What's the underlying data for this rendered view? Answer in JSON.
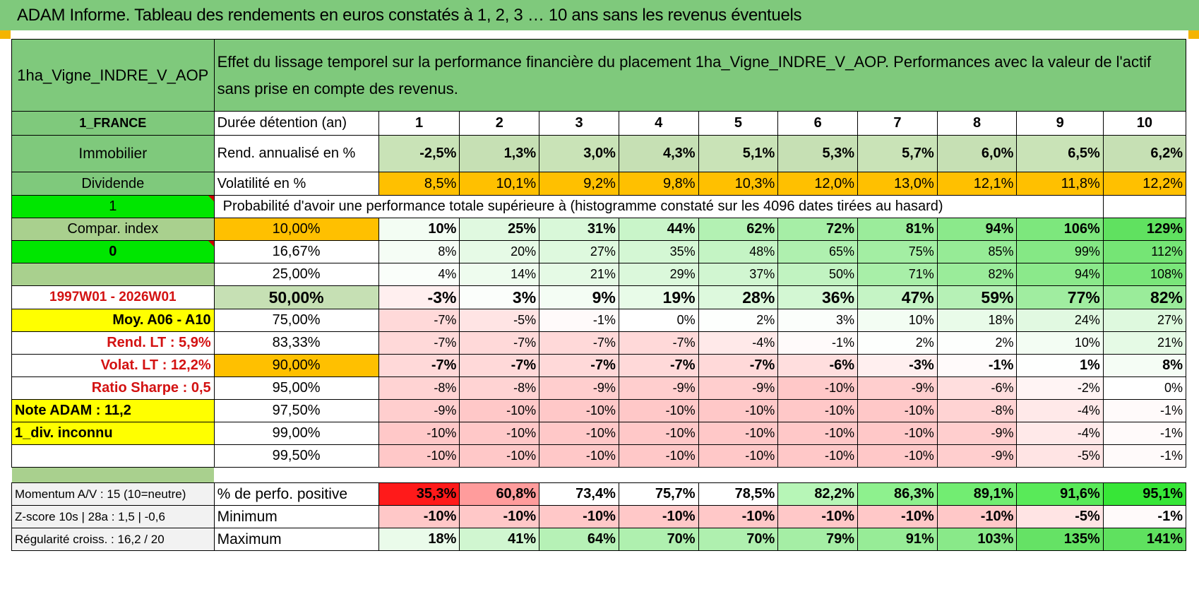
{
  "header": {
    "title": "ADAM Informe. Tableau des rendements en euros constatés à 1, 2, 3 … 10 ans sans les revenus éventuels"
  },
  "asset": {
    "name": "1ha_Vigne_INDRE_V_AOP",
    "description": "Effet du lissage temporel sur la performance financière du placement 1ha_Vigne_INDRE_V_AOP. Performances avec la valeur de l'actif sans prise en compte des revenus."
  },
  "info": {
    "country": "1_FRANCE",
    "category": "Immobilier",
    "dividend": "Dividende",
    "flag1": "1",
    "compar": "Compar. index",
    "flag0": "0",
    "blank": "",
    "period": "1997W01 - 2026W01",
    "moy": "Moy. A06 - A10",
    "rend_lt": "Rend. LT :   5,9%",
    "volat_lt": "Volat. LT :   12,2%",
    "sharpe": "Ratio Sharpe :    0,5",
    "note": "Note ADAM : 11,2",
    "div": "1_div. inconnu",
    "momentum": "Momentum A/V : 15 (10=neutre)",
    "zscore": "Z-score 10s | 28a : 1,5 | -0,6",
    "regularity": "Régularité croiss. : 16,2 / 20"
  },
  "labels": {
    "duration": "Durée détention (an)",
    "rend": "Rend. annualisé en %",
    "vol": "Volatilité en %",
    "proba": "Probabilité d'avoir une performance totale supérieure à (histogramme constaté sur les 4096 dates tirées au hasard)",
    "positive": "% de perfo. positive",
    "minimum": "Minimum",
    "maximum": "Maximum"
  },
  "years": [
    "1",
    "2",
    "3",
    "4",
    "5",
    "6",
    "7",
    "8",
    "9",
    "10"
  ],
  "rend": [
    "-2,5%",
    "1,3%",
    "3,0%",
    "4,3%",
    "5,1%",
    "5,3%",
    "5,7%",
    "6,0%",
    "6,5%",
    "6,2%"
  ],
  "vol": [
    "8,5%",
    "10,1%",
    "9,2%",
    "9,8%",
    "10,3%",
    "12,0%",
    "13,0%",
    "12,1%",
    "11,8%",
    "12,2%"
  ],
  "percentiles": [
    {
      "p": "10,00%",
      "v": [
        "10%",
        "25%",
        "31%",
        "44%",
        "62%",
        "72%",
        "81%",
        "94%",
        "106%",
        "129%"
      ]
    },
    {
      "p": "16,67%",
      "v": [
        "8%",
        "20%",
        "27%",
        "35%",
        "48%",
        "65%",
        "75%",
        "85%",
        "99%",
        "112%"
      ]
    },
    {
      "p": "25,00%",
      "v": [
        "4%",
        "14%",
        "21%",
        "29%",
        "37%",
        "50%",
        "71%",
        "82%",
        "94%",
        "108%"
      ]
    },
    {
      "p": "50,00%",
      "v": [
        "-3%",
        "3%",
        "9%",
        "19%",
        "28%",
        "36%",
        "47%",
        "59%",
        "77%",
        "82%"
      ]
    },
    {
      "p": "75,00%",
      "v": [
        "-7%",
        "-5%",
        "-1%",
        "0%",
        "2%",
        "3%",
        "10%",
        "18%",
        "24%",
        "27%"
      ]
    },
    {
      "p": "83,33%",
      "v": [
        "-7%",
        "-7%",
        "-7%",
        "-7%",
        "-4%",
        "-1%",
        "2%",
        "2%",
        "10%",
        "21%"
      ]
    },
    {
      "p": "90,00%",
      "v": [
        "-7%",
        "-7%",
        "-7%",
        "-7%",
        "-7%",
        "-6%",
        "-3%",
        "-1%",
        "1%",
        "8%"
      ]
    },
    {
      "p": "95,00%",
      "v": [
        "-8%",
        "-8%",
        "-9%",
        "-9%",
        "-9%",
        "-10%",
        "-9%",
        "-6%",
        "-2%",
        "0%"
      ]
    },
    {
      "p": "97,50%",
      "v": [
        "-9%",
        "-10%",
        "-10%",
        "-10%",
        "-10%",
        "-10%",
        "-10%",
        "-8%",
        "-4%",
        "-1%"
      ]
    },
    {
      "p": "99,00%",
      "v": [
        "-10%",
        "-10%",
        "-10%",
        "-10%",
        "-10%",
        "-10%",
        "-10%",
        "-9%",
        "-4%",
        "-1%"
      ]
    },
    {
      "p": "99,50%",
      "v": [
        "-10%",
        "-10%",
        "-10%",
        "-10%",
        "-10%",
        "-10%",
        "-10%",
        "-9%",
        "-5%",
        "-1%"
      ]
    }
  ],
  "positive": [
    "35,3%",
    "60,8%",
    "73,4%",
    "75,7%",
    "78,5%",
    "82,2%",
    "86,3%",
    "89,1%",
    "91,6%",
    "95,1%"
  ],
  "minimum": [
    "-10%",
    "-10%",
    "-10%",
    "-10%",
    "-10%",
    "-10%",
    "-10%",
    "-10%",
    "-5%",
    "-1%"
  ],
  "maximum": [
    "18%",
    "41%",
    "64%",
    "70%",
    "70%",
    "79%",
    "91%",
    "103%",
    "135%",
    "141%"
  ],
  "colors": {
    "banner_green": "#7fc97c",
    "header_green": "#7fc97c",
    "lime": "#00e600",
    "orange": "#ffc000",
    "yellow": "#ffff00",
    "label_red": "#d31212"
  }
}
